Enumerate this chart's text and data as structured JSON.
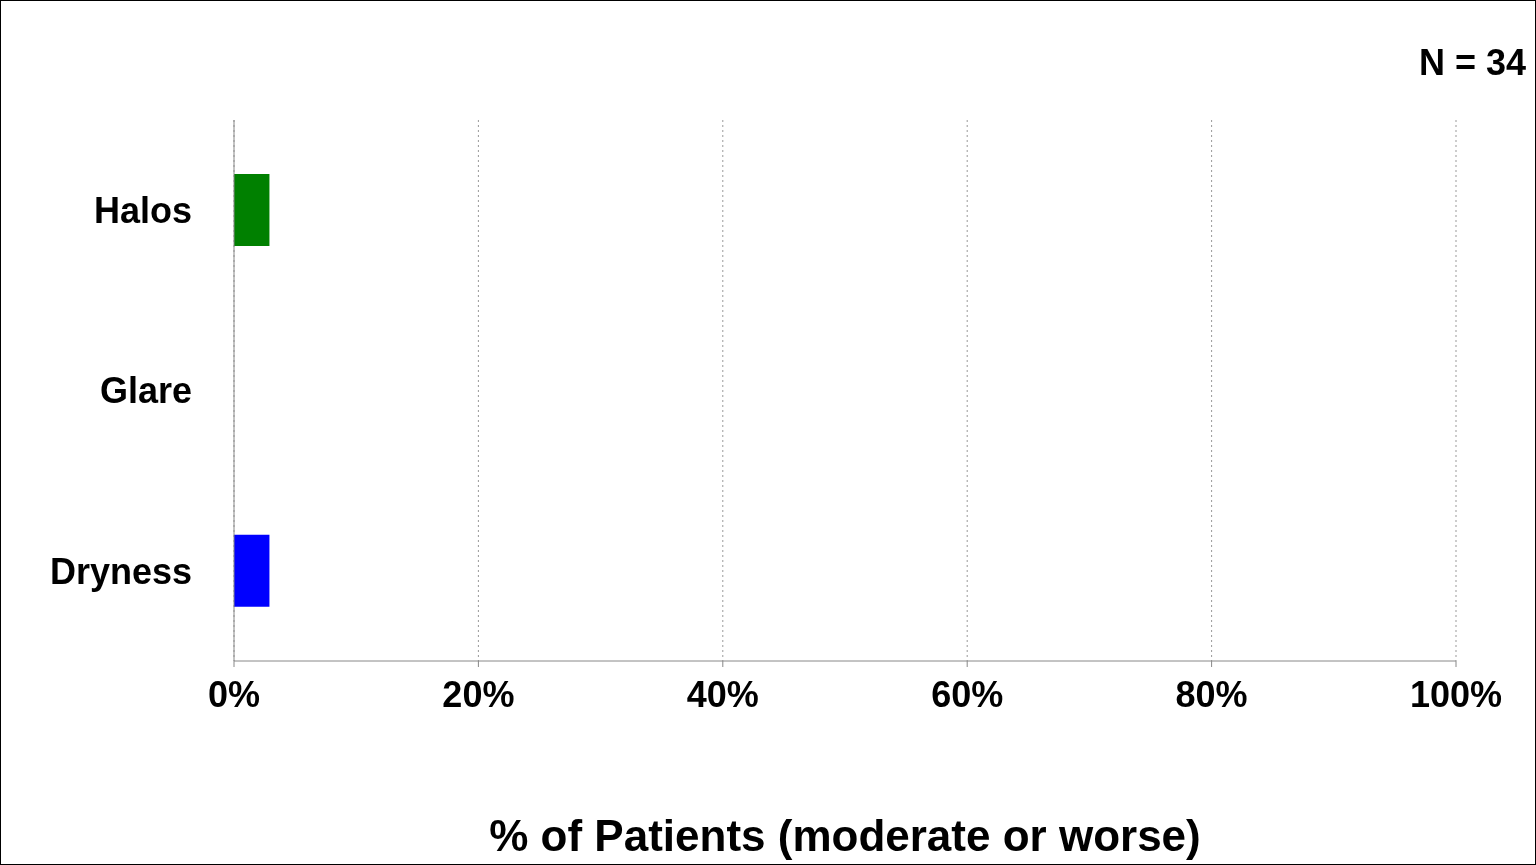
{
  "chart_data": {
    "type": "bar",
    "orientation": "horizontal",
    "categories": [
      "Halos",
      "Glare",
      "Dryness"
    ],
    "values": [
      2.9,
      0,
      2.9
    ],
    "colors": [
      "#008000",
      null,
      "#0000ff"
    ],
    "xlabel": "% of Patients (moderate or worse)",
    "xlim": [
      0,
      100
    ],
    "xticks": [
      {
        "value": 0,
        "label": "0%"
      },
      {
        "value": 20,
        "label": "20%"
      },
      {
        "value": 40,
        "label": "40%"
      },
      {
        "value": 60,
        "label": "60%"
      },
      {
        "value": 80,
        "label": "80%"
      },
      {
        "value": 100,
        "label": "100%"
      }
    ],
    "grid": "x",
    "annotations": [
      "N = 34"
    ]
  }
}
